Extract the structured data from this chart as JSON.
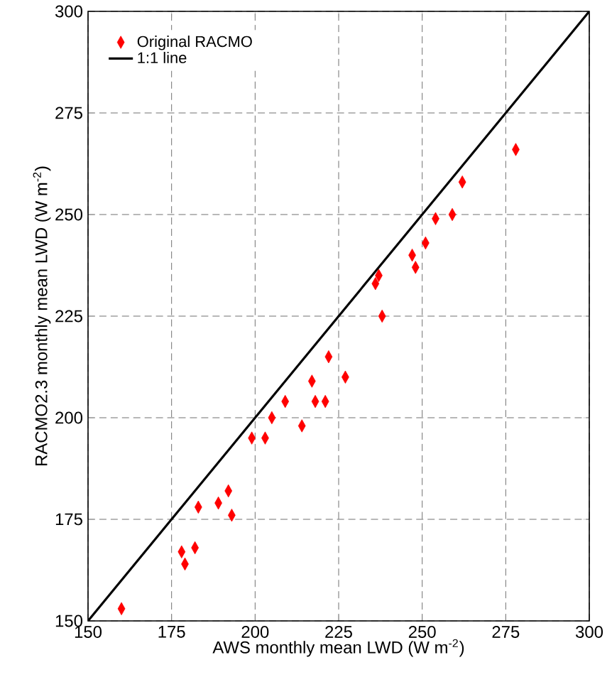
{
  "chart_data": {
    "type": "scatter",
    "xlabel": "AWS monthly mean LWD (W m$^{-2}$)",
    "ylabel": "RACMO2.3 monthly mean LWD (W m$^{-2}$)",
    "xlim": [
      150,
      300
    ],
    "ylim": [
      150,
      300
    ],
    "xticks": [
      150,
      175,
      200,
      225,
      250,
      275,
      300
    ],
    "yticks": [
      150,
      175,
      200,
      225,
      250,
      275,
      300
    ],
    "grid": true,
    "legend": "top left",
    "marker": "diamond",
    "series": [
      {
        "name": "Original RACMO",
        "color": "#ff0000",
        "x": [
          160,
          178,
          179,
          182,
          183,
          189,
          192,
          193,
          199,
          203,
          205,
          209,
          214,
          217,
          218,
          221,
          222,
          227,
          236,
          237,
          238,
          247,
          248,
          251,
          254,
          259,
          262,
          278
        ],
        "values": [
          153,
          167,
          164,
          168,
          178,
          179,
          182,
          176,
          195,
          195,
          200,
          204,
          198,
          209,
          204,
          204,
          215,
          210,
          233,
          235,
          225,
          240,
          237,
          243,
          249,
          250,
          258,
          266
        ]
      },
      {
        "name": "1:1 line",
        "type": "line",
        "color": "#000000",
        "marker": "none",
        "line_style": "solid",
        "x": [
          150,
          300
        ],
        "values": [
          150,
          300
        ]
      }
    ]
  }
}
